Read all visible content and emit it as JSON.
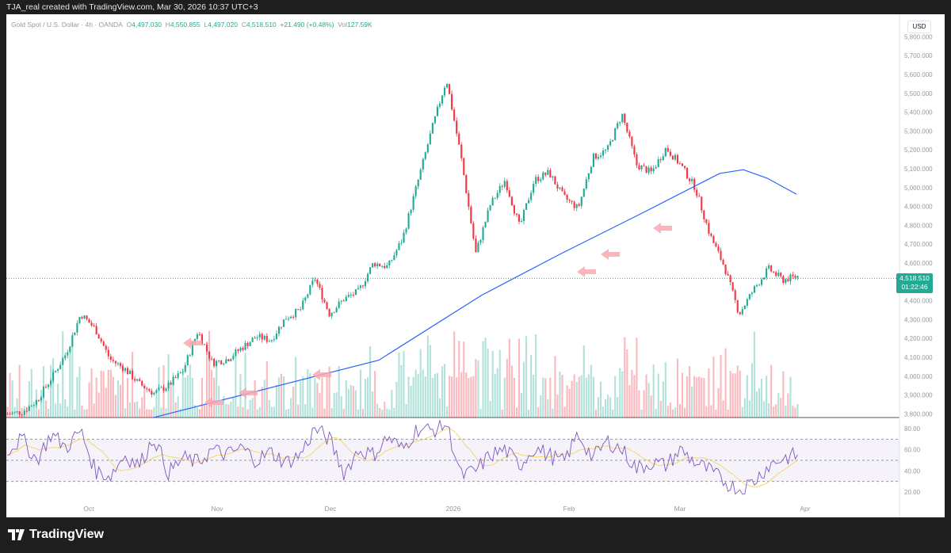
{
  "header": {
    "credit": "TJA_real created with TradingView.com, Mar 30, 2026 10:37 UTC+3"
  },
  "legend": {
    "symbol": "Gold Spot / U.S. Dollar · 4h · OANDA",
    "o_label": "O",
    "open": "4,497.030",
    "h_label": "H",
    "high": "4,550.855",
    "l_label": "L",
    "low": "4,497.020",
    "c_label": "C",
    "close": "4,518.510",
    "change": "+21.490 (+0.48%)",
    "vol_label": "Vol",
    "volume": "127.59K"
  },
  "price_axis": {
    "currency": "USD",
    "last_price": "4,518.510",
    "countdown": "01:22:46"
  },
  "brand": {
    "name": "TradingView"
  },
  "colors": {
    "up": "#22ab94",
    "down": "#f23645",
    "ma": "#2962ff",
    "rsi": "#7e57c2",
    "rsi_ma": "#f5d76e",
    "arrow": "#f7a8b0"
  },
  "chart_data": {
    "type": "candlestick",
    "title": "Gold Spot / U.S. Dollar · 4h · OANDA",
    "y_ticks": [
      "5,800.000",
      "5,700.000",
      "5,600.000",
      "5,500.000",
      "5,400.000",
      "5,300.000",
      "5,200.000",
      "5,100.000",
      "5,000.000",
      "4,900.000",
      "4,800.000",
      "4,700.000",
      "4,600.000",
      "4,400.000",
      "4,300.000",
      "4,200.000",
      "4,100.000",
      "4,000.000",
      "3,900.000",
      "3,800.000"
    ],
    "ylim": [
      3780,
      5820
    ],
    "x_ticks": [
      "Oct",
      "Nov",
      "Dec",
      "2026",
      "Feb",
      "Mar",
      "Apr"
    ],
    "price_path": [
      3800,
      3810,
      3870,
      3990,
      4120,
      4330,
      4250,
      4090,
      4040,
      3960,
      3910,
      3950,
      4030,
      4240,
      4070,
      4090,
      4150,
      4210,
      4190,
      4310,
      4350,
      4520,
      4330,
      4410,
      4450,
      4600,
      4580,
      4730,
      5020,
      5310,
      5575,
      5160,
      4650,
      4910,
      5040,
      4790,
      5040,
      5080,
      4950,
      4890,
      5160,
      5200,
      5390,
      5120,
      5080,
      5210,
      5120,
      5000,
      4750,
      4580,
      4330,
      4460,
      4570,
      4510,
      4530
    ],
    "ma_path": [
      3780,
      4085,
      4430,
      4650,
      4860,
      5075,
      5095,
      5050,
      4965
    ],
    "rsi_ticks": [
      "80.00",
      "60.00",
      "40.00",
      "20.00"
    ],
    "rsi_levels": [
      70,
      50,
      30
    ],
    "rsi_ylim": [
      10,
      90
    ]
  }
}
